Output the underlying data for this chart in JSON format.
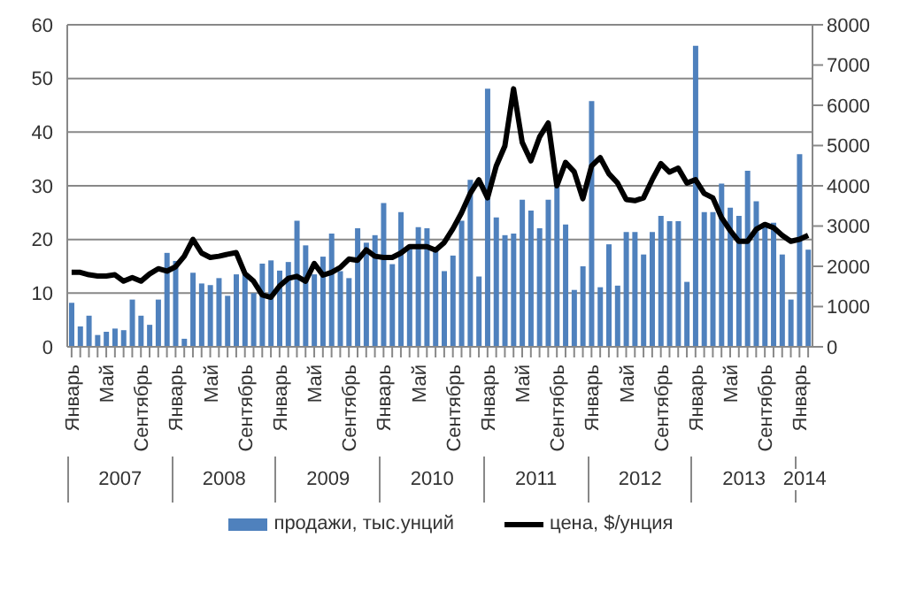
{
  "chart_data": {
    "type": "bar",
    "categories": [
      "Январь",
      null,
      null,
      null,
      "Май",
      null,
      null,
      null,
      "Сентябрь",
      null,
      null,
      null,
      "Январь",
      null,
      null,
      null,
      "Май",
      null,
      null,
      null,
      "Сентябрь",
      null,
      null,
      null,
      "Январь",
      null,
      null,
      null,
      "Май",
      null,
      null,
      null,
      "Сентябрь",
      null,
      null,
      null,
      "Январь",
      null,
      null,
      null,
      "Май",
      null,
      null,
      null,
      "Сентябрь",
      null,
      null,
      null,
      "Январь",
      null,
      null,
      null,
      "Май",
      null,
      null,
      null,
      "Сентябрь",
      null,
      null,
      null,
      "Январь",
      null,
      null,
      null,
      "Май",
      null,
      null,
      null,
      "Сентябрь",
      null,
      null,
      null,
      "Январь",
      null,
      null,
      null,
      "Май",
      null,
      null,
      null,
      "Сентябрь",
      null,
      null,
      null,
      "Январь",
      null
    ],
    "series": [
      {
        "name": "продажи, тыс.унций",
        "color": "#4f81bd",
        "values": [
          8.2,
          3.8,
          5.8,
          2.2,
          2.8,
          3.4,
          3.1,
          8.8,
          5.8,
          4.1,
          8.8,
          17.5,
          16,
          1.5,
          13.8,
          11.8,
          11.5,
          12.8,
          9.5,
          13.5,
          13.5,
          10,
          15.5,
          16.1,
          14.2,
          15.8,
          23.5,
          18.9,
          13.5,
          16.8,
          21.1,
          14.1,
          12.8,
          22.1,
          19.4,
          20.8,
          26.8,
          15.4,
          25.1,
          18.5,
          22.3,
          22.1,
          18.5,
          14.1,
          17,
          23.5,
          31.1,
          13.1,
          48.1,
          24.1,
          20.8,
          21.1,
          27.4,
          25.4,
          22.1,
          27.4,
          29.8,
          22.8,
          10.6,
          15,
          45.8,
          11.1,
          19.1,
          11.4,
          21.4,
          21.4,
          17.2,
          21.4,
          24.4,
          23.4,
          23.4,
          12.1,
          56.1,
          25.1,
          25.1,
          30.4,
          25.9,
          24.4,
          32.8,
          27.1,
          22.8,
          23.1,
          17.2,
          8.8,
          35.9,
          18.1
        ]
      },
      {
        "name": "цена, $/унция",
        "type": "line",
        "axis": "y2",
        "color": "#000000",
        "values": [
          1850,
          1850,
          1790,
          1760,
          1760,
          1790,
          1630,
          1720,
          1630,
          1810,
          1940,
          1880,
          1990,
          2250,
          2670,
          2330,
          2220,
          2250,
          2300,
          2340,
          1820,
          1630,
          1290,
          1230,
          1510,
          1700,
          1750,
          1630,
          2070,
          1780,
          1850,
          1970,
          2180,
          2150,
          2410,
          2250,
          2220,
          2220,
          2330,
          2490,
          2490,
          2490,
          2400,
          2590,
          2930,
          3330,
          3810,
          4150,
          3700,
          4490,
          4990,
          6410,
          5080,
          4620,
          5210,
          5560,
          4000,
          4580,
          4350,
          3680,
          4490,
          4700,
          4300,
          4070,
          3660,
          3630,
          3700,
          4150,
          4550,
          4340,
          4440,
          4070,
          4150,
          3810,
          3700,
          3210,
          2890,
          2620,
          2620,
          2920,
          3040,
          2960,
          2770,
          2620,
          2670,
          2770
        ]
      }
    ],
    "ylim": [
      0,
      60
    ],
    "yticks": [
      0,
      10,
      20,
      30,
      40,
      50,
      60
    ],
    "y2lim": [
      0,
      8000
    ],
    "y2ticks": [
      0,
      1000,
      2000,
      3000,
      4000,
      5000,
      6000,
      7000,
      8000
    ],
    "grid": "y",
    "legend": "bottom",
    "marker": "none",
    "line_style": "solid",
    "annotations": [
      "2007",
      "2008",
      "2009",
      "2010",
      "2011",
      "2012",
      "2013",
      "2014"
    ]
  }
}
